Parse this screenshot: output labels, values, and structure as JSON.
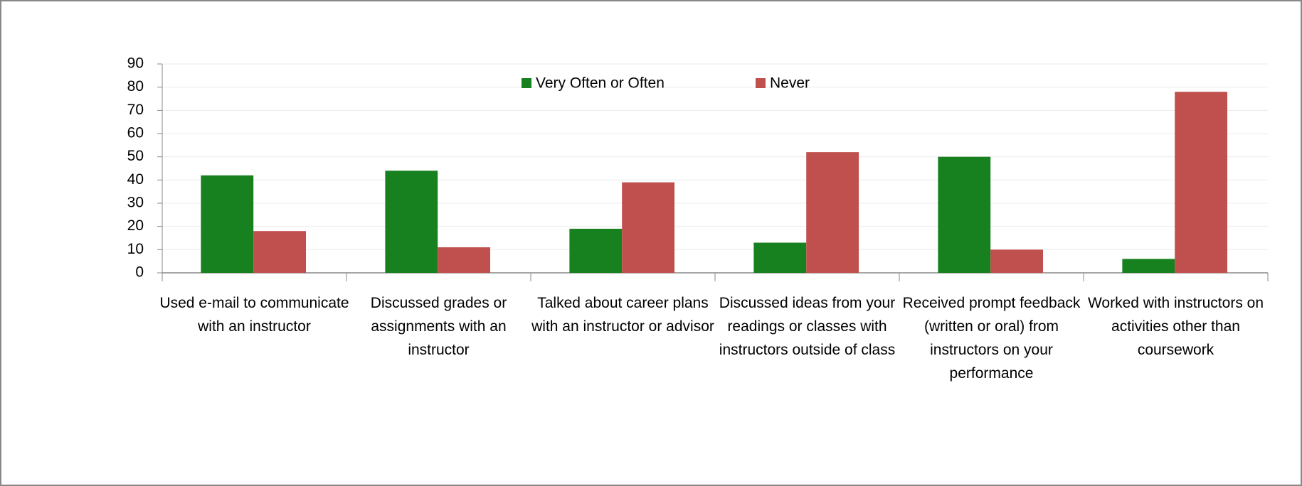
{
  "chart_data": {
    "type": "bar",
    "categories": [
      "Used e-mail to communicate with an instructor",
      "Discussed grades or assignments with an instructor",
      "Talked about career plans with an instructor or advisor",
      "Discussed ideas from your readings or classes with instructors outside of class",
      "Received prompt feedback (written or oral) from instructors on your performance",
      "Worked with instructors on activities other than coursework"
    ],
    "series": [
      {
        "name": "Very Often or Often",
        "color": "#17801f",
        "values": [
          42,
          44,
          19,
          13,
          50,
          6
        ]
      },
      {
        "name": "Never",
        "color": "#c0504d",
        "values": [
          18,
          11,
          39,
          52,
          10,
          78
        ]
      }
    ],
    "ylim": [
      0,
      90
    ],
    "yticks": [
      0,
      10,
      20,
      30,
      40,
      50,
      60,
      70,
      80,
      90
    ],
    "grid": true,
    "legend": "top"
  }
}
